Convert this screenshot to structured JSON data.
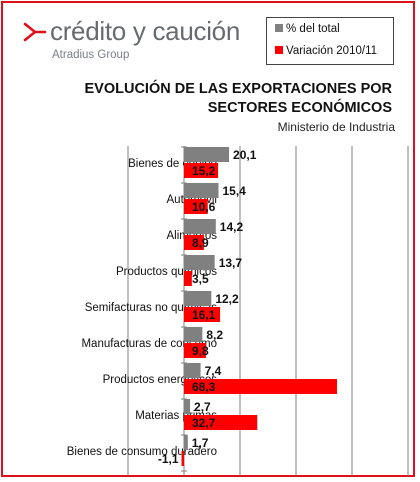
{
  "brand": {
    "name": "crédito y caución",
    "tagline": "Atradius Group",
    "brand_color": "#e0101a"
  },
  "legend": {
    "position": "top-right",
    "items": [
      {
        "label": "% del total",
        "color": "#808080"
      },
      {
        "label": "Variación 2010/11",
        "color": "#ff0000"
      }
    ]
  },
  "chart_data": {
    "type": "bar",
    "orientation": "horizontal",
    "title": "EVOLUCIÓN DE LAS EXPORTACIONES POR SECTORES ECONÓMICOS",
    "subtitle": "Ministerio de Industria",
    "categories": [
      "Bienes de equipo",
      "Automóvil",
      "Alimentos",
      "Productos químicos",
      "Semifacturas no químicas",
      "Manufacturas de consumo",
      "Productos energéticos",
      "Materias primas",
      "Bienes de consumo duradero"
    ],
    "series": [
      {
        "name": "% del total",
        "color": "#808080",
        "values": [
          20.1,
          15.4,
          14.2,
          13.7,
          12.2,
          8.2,
          7.4,
          2.7,
          1.7
        ],
        "labels": [
          "20,1",
          "15,4",
          "14,2",
          "13,7",
          "12,2",
          "8,2",
          "7,4",
          "2,7",
          "1,7"
        ]
      },
      {
        "name": "Variación 2010/11",
        "color": "#ff0000",
        "values": [
          15.2,
          10.6,
          8.9,
          3.5,
          16.1,
          9.8,
          68.3,
          32.7,
          -1.1
        ],
        "labels": [
          "15,2",
          "10,6",
          "8,9",
          "3,5",
          "16,1",
          "9,8",
          "68,3",
          "32,7",
          "-1,1"
        ]
      }
    ],
    "xlim": [
      -25,
      100
    ],
    "grid": "vertical",
    "frame_color": "#e0101a"
  }
}
